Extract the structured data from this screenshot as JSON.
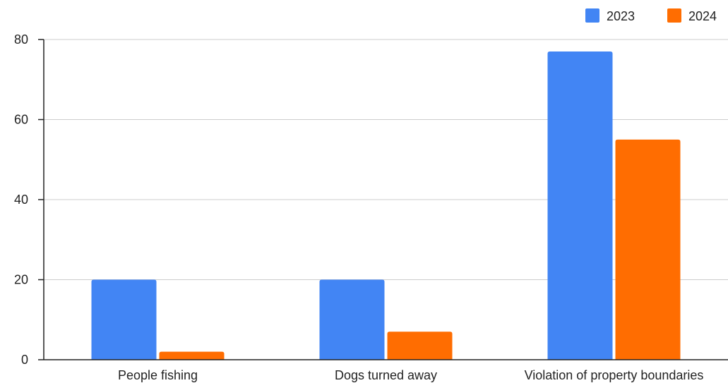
{
  "chart_data": {
    "type": "bar",
    "title": "",
    "xlabel": "",
    "ylabel": "",
    "categories": [
      "People fishing",
      "Dogs turned away",
      "Violation of property boundaries"
    ],
    "series": [
      {
        "name": "2023",
        "color": "#4285f4",
        "values": [
          20,
          20,
          77
        ]
      },
      {
        "name": "2024",
        "color": "#ff6d01",
        "values": [
          2,
          7,
          55
        ]
      }
    ],
    "ylim": [
      0,
      80
    ],
    "yticks": [
      0,
      20,
      40,
      60,
      80
    ],
    "ytick_labels": [
      "0",
      "20",
      "40",
      "60",
      "80"
    ],
    "grid": true,
    "gridline_color": "#cccccc",
    "legend": "top-right"
  }
}
